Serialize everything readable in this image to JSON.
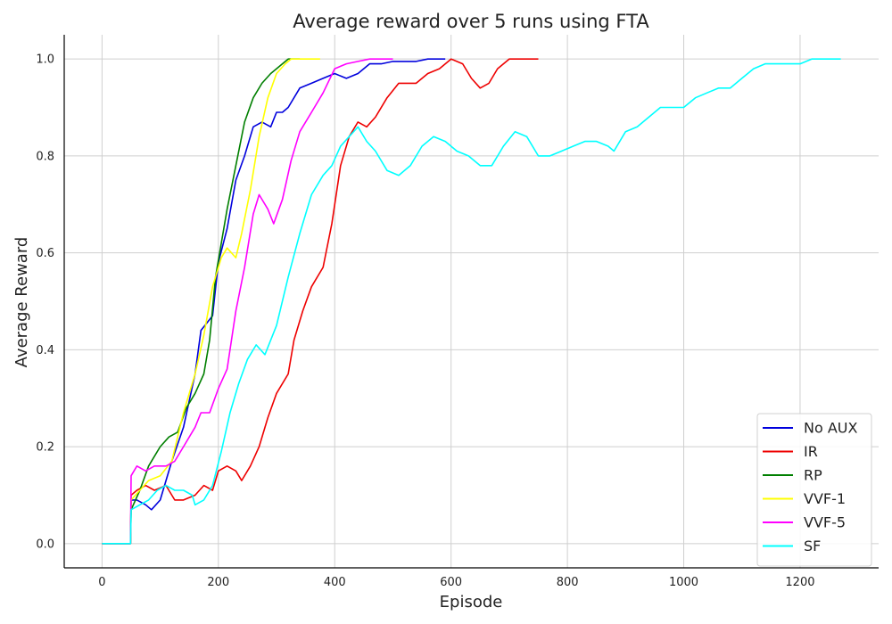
{
  "chart_data": {
    "type": "line",
    "title": "Average reward over 5 runs using FTA",
    "xlabel": "Episode",
    "ylabel": "Average Reward",
    "xlim": [
      -65,
      1335
    ],
    "ylim": [
      -0.05,
      1.05
    ],
    "xticks": [
      0,
      200,
      400,
      600,
      800,
      1000,
      1200
    ],
    "yticks": [
      0.0,
      0.2,
      0.4,
      0.6,
      0.8,
      1.0
    ],
    "xtick_labels": [
      "0",
      "200",
      "400",
      "600",
      "800",
      "1000",
      "1200"
    ],
    "ytick_labels": [
      "0.0",
      "0.2",
      "0.4",
      "0.6",
      "0.8",
      "1.0"
    ],
    "grid": true,
    "legend_position": "lower-right",
    "series": [
      {
        "name": "No AUX",
        "color": "#0000dd",
        "x": [
          0,
          49,
          50,
          60,
          75,
          85,
          100,
          120,
          140,
          160,
          170,
          190,
          200,
          215,
          230,
          245,
          260,
          275,
          290,
          300,
          310,
          320,
          340,
          360,
          380,
          400,
          420,
          440,
          460,
          480,
          500,
          540,
          560,
          590
        ],
        "y": [
          0.0,
          0.0,
          0.09,
          0.09,
          0.08,
          0.07,
          0.09,
          0.17,
          0.24,
          0.35,
          0.44,
          0.47,
          0.58,
          0.65,
          0.75,
          0.8,
          0.86,
          0.87,
          0.86,
          0.89,
          0.89,
          0.9,
          0.94,
          0.95,
          0.96,
          0.97,
          0.96,
          0.97,
          0.99,
          0.99,
          0.995,
          0.995,
          1.0,
          1.0
        ]
      },
      {
        "name": "IR",
        "color": "#ee0000",
        "x": [
          0,
          49,
          50,
          60,
          75,
          90,
          110,
          125,
          140,
          160,
          175,
          190,
          200,
          215,
          230,
          240,
          255,
          270,
          285,
          300,
          320,
          330,
          345,
          360,
          380,
          395,
          410,
          425,
          440,
          455,
          470,
          490,
          510,
          540,
          560,
          580,
          600,
          620,
          635,
          650,
          665,
          680,
          700,
          750
        ],
        "y": [
          0.0,
          0.0,
          0.1,
          0.11,
          0.12,
          0.11,
          0.12,
          0.09,
          0.09,
          0.1,
          0.12,
          0.11,
          0.15,
          0.16,
          0.15,
          0.13,
          0.16,
          0.2,
          0.26,
          0.31,
          0.35,
          0.42,
          0.48,
          0.53,
          0.57,
          0.66,
          0.78,
          0.84,
          0.87,
          0.86,
          0.88,
          0.92,
          0.95,
          0.95,
          0.97,
          0.98,
          1.0,
          0.99,
          0.96,
          0.94,
          0.95,
          0.98,
          1.0,
          1.0
        ]
      },
      {
        "name": "RP",
        "color": "#007f00",
        "x": [
          0,
          49,
          50,
          65,
          80,
          100,
          115,
          130,
          145,
          160,
          175,
          185,
          195,
          205,
          215,
          230,
          245,
          260,
          275,
          290,
          300,
          310,
          320,
          340
        ],
        "y": [
          0.0,
          0.0,
          0.07,
          0.11,
          0.16,
          0.2,
          0.22,
          0.23,
          0.28,
          0.31,
          0.35,
          0.42,
          0.55,
          0.62,
          0.69,
          0.78,
          0.87,
          0.92,
          0.95,
          0.97,
          0.98,
          0.99,
          1.0,
          1.0
        ]
      },
      {
        "name": "VVF-1",
        "color": "#ffff00",
        "x": [
          0,
          49,
          50,
          65,
          80,
          100,
          120,
          140,
          160,
          175,
          190,
          205,
          215,
          230,
          240,
          255,
          270,
          285,
          300,
          315,
          325,
          340,
          375
        ],
        "y": [
          0.0,
          0.0,
          0.09,
          0.11,
          0.13,
          0.14,
          0.17,
          0.27,
          0.35,
          0.43,
          0.53,
          0.59,
          0.61,
          0.59,
          0.64,
          0.73,
          0.84,
          0.92,
          0.97,
          0.99,
          1.0,
          1.0,
          1.0
        ]
      },
      {
        "name": "VVF-5",
        "color": "#ff00ff",
        "x": [
          0,
          49,
          50,
          60,
          75,
          90,
          110,
          125,
          140,
          160,
          170,
          185,
          200,
          215,
          230,
          245,
          260,
          270,
          285,
          295,
          310,
          325,
          340,
          360,
          380,
          400,
          420,
          440,
          460,
          500
        ],
        "y": [
          0.0,
          0.0,
          0.14,
          0.16,
          0.15,
          0.16,
          0.16,
          0.17,
          0.2,
          0.24,
          0.27,
          0.27,
          0.32,
          0.36,
          0.48,
          0.57,
          0.68,
          0.72,
          0.69,
          0.66,
          0.71,
          0.79,
          0.85,
          0.89,
          0.93,
          0.98,
          0.99,
          0.995,
          1.0,
          1.0
        ]
      },
      {
        "name": "SF",
        "color": "#00ffff",
        "x": [
          0,
          49,
          50,
          65,
          80,
          95,
          110,
          125,
          140,
          155,
          160,
          175,
          190,
          205,
          220,
          235,
          250,
          265,
          280,
          300,
          320,
          340,
          360,
          380,
          395,
          410,
          425,
          440,
          455,
          470,
          490,
          510,
          530,
          550,
          570,
          590,
          610,
          630,
          650,
          670,
          690,
          710,
          730,
          750,
          770,
          790,
          810,
          830,
          850,
          870,
          880,
          900,
          920,
          940,
          960,
          980,
          1000,
          1020,
          1040,
          1060,
          1080,
          1100,
          1120,
          1140,
          1160,
          1180,
          1200,
          1220,
          1240,
          1270
        ],
        "y": [
          0.0,
          0.0,
          0.07,
          0.08,
          0.09,
          0.11,
          0.12,
          0.11,
          0.11,
          0.1,
          0.08,
          0.09,
          0.12,
          0.19,
          0.27,
          0.33,
          0.38,
          0.41,
          0.39,
          0.45,
          0.55,
          0.64,
          0.72,
          0.76,
          0.78,
          0.82,
          0.84,
          0.86,
          0.83,
          0.81,
          0.77,
          0.76,
          0.78,
          0.82,
          0.84,
          0.83,
          0.81,
          0.8,
          0.78,
          0.78,
          0.82,
          0.85,
          0.84,
          0.8,
          0.8,
          0.81,
          0.82,
          0.83,
          0.83,
          0.82,
          0.81,
          0.85,
          0.86,
          0.88,
          0.9,
          0.9,
          0.9,
          0.92,
          0.93,
          0.94,
          0.94,
          0.96,
          0.98,
          0.99,
          0.99,
          0.99,
          0.99,
          1.0,
          1.0,
          1.0
        ]
      }
    ]
  }
}
